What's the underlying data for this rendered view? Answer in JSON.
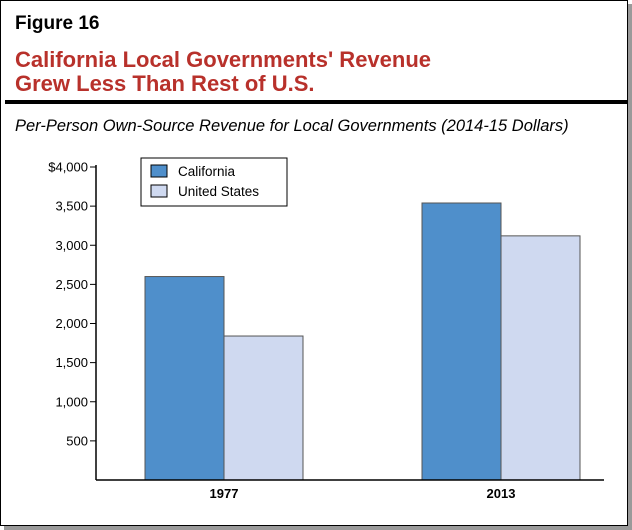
{
  "figure_label": "Figure 16",
  "title_lines": [
    "California Local Governments' Revenue",
    "Grew Less Than Rest of U.S."
  ],
  "subtitle": "Per-Person Own-Source Revenue for Local Governments (2014-15 Dollars)",
  "chart_data": {
    "type": "bar",
    "categories": [
      "1977",
      "2013"
    ],
    "series": [
      {
        "name": "California",
        "values": [
          2600,
          3540
        ],
        "color": "#4f8fcb"
      },
      {
        "name": "United States",
        "values": [
          1840,
          3120
        ],
        "color": "#cfd9f0"
      }
    ],
    "ylim": [
      0,
      4000
    ],
    "yticks": [
      500,
      1000,
      1500,
      2000,
      2500,
      3000,
      3500,
      4000
    ],
    "ytick_labels": [
      "500",
      "1,000",
      "1,500",
      "2,000",
      "2,500",
      "3,000",
      "3,500",
      "$4,000"
    ],
    "grid": false,
    "legend_position": "top-left"
  }
}
